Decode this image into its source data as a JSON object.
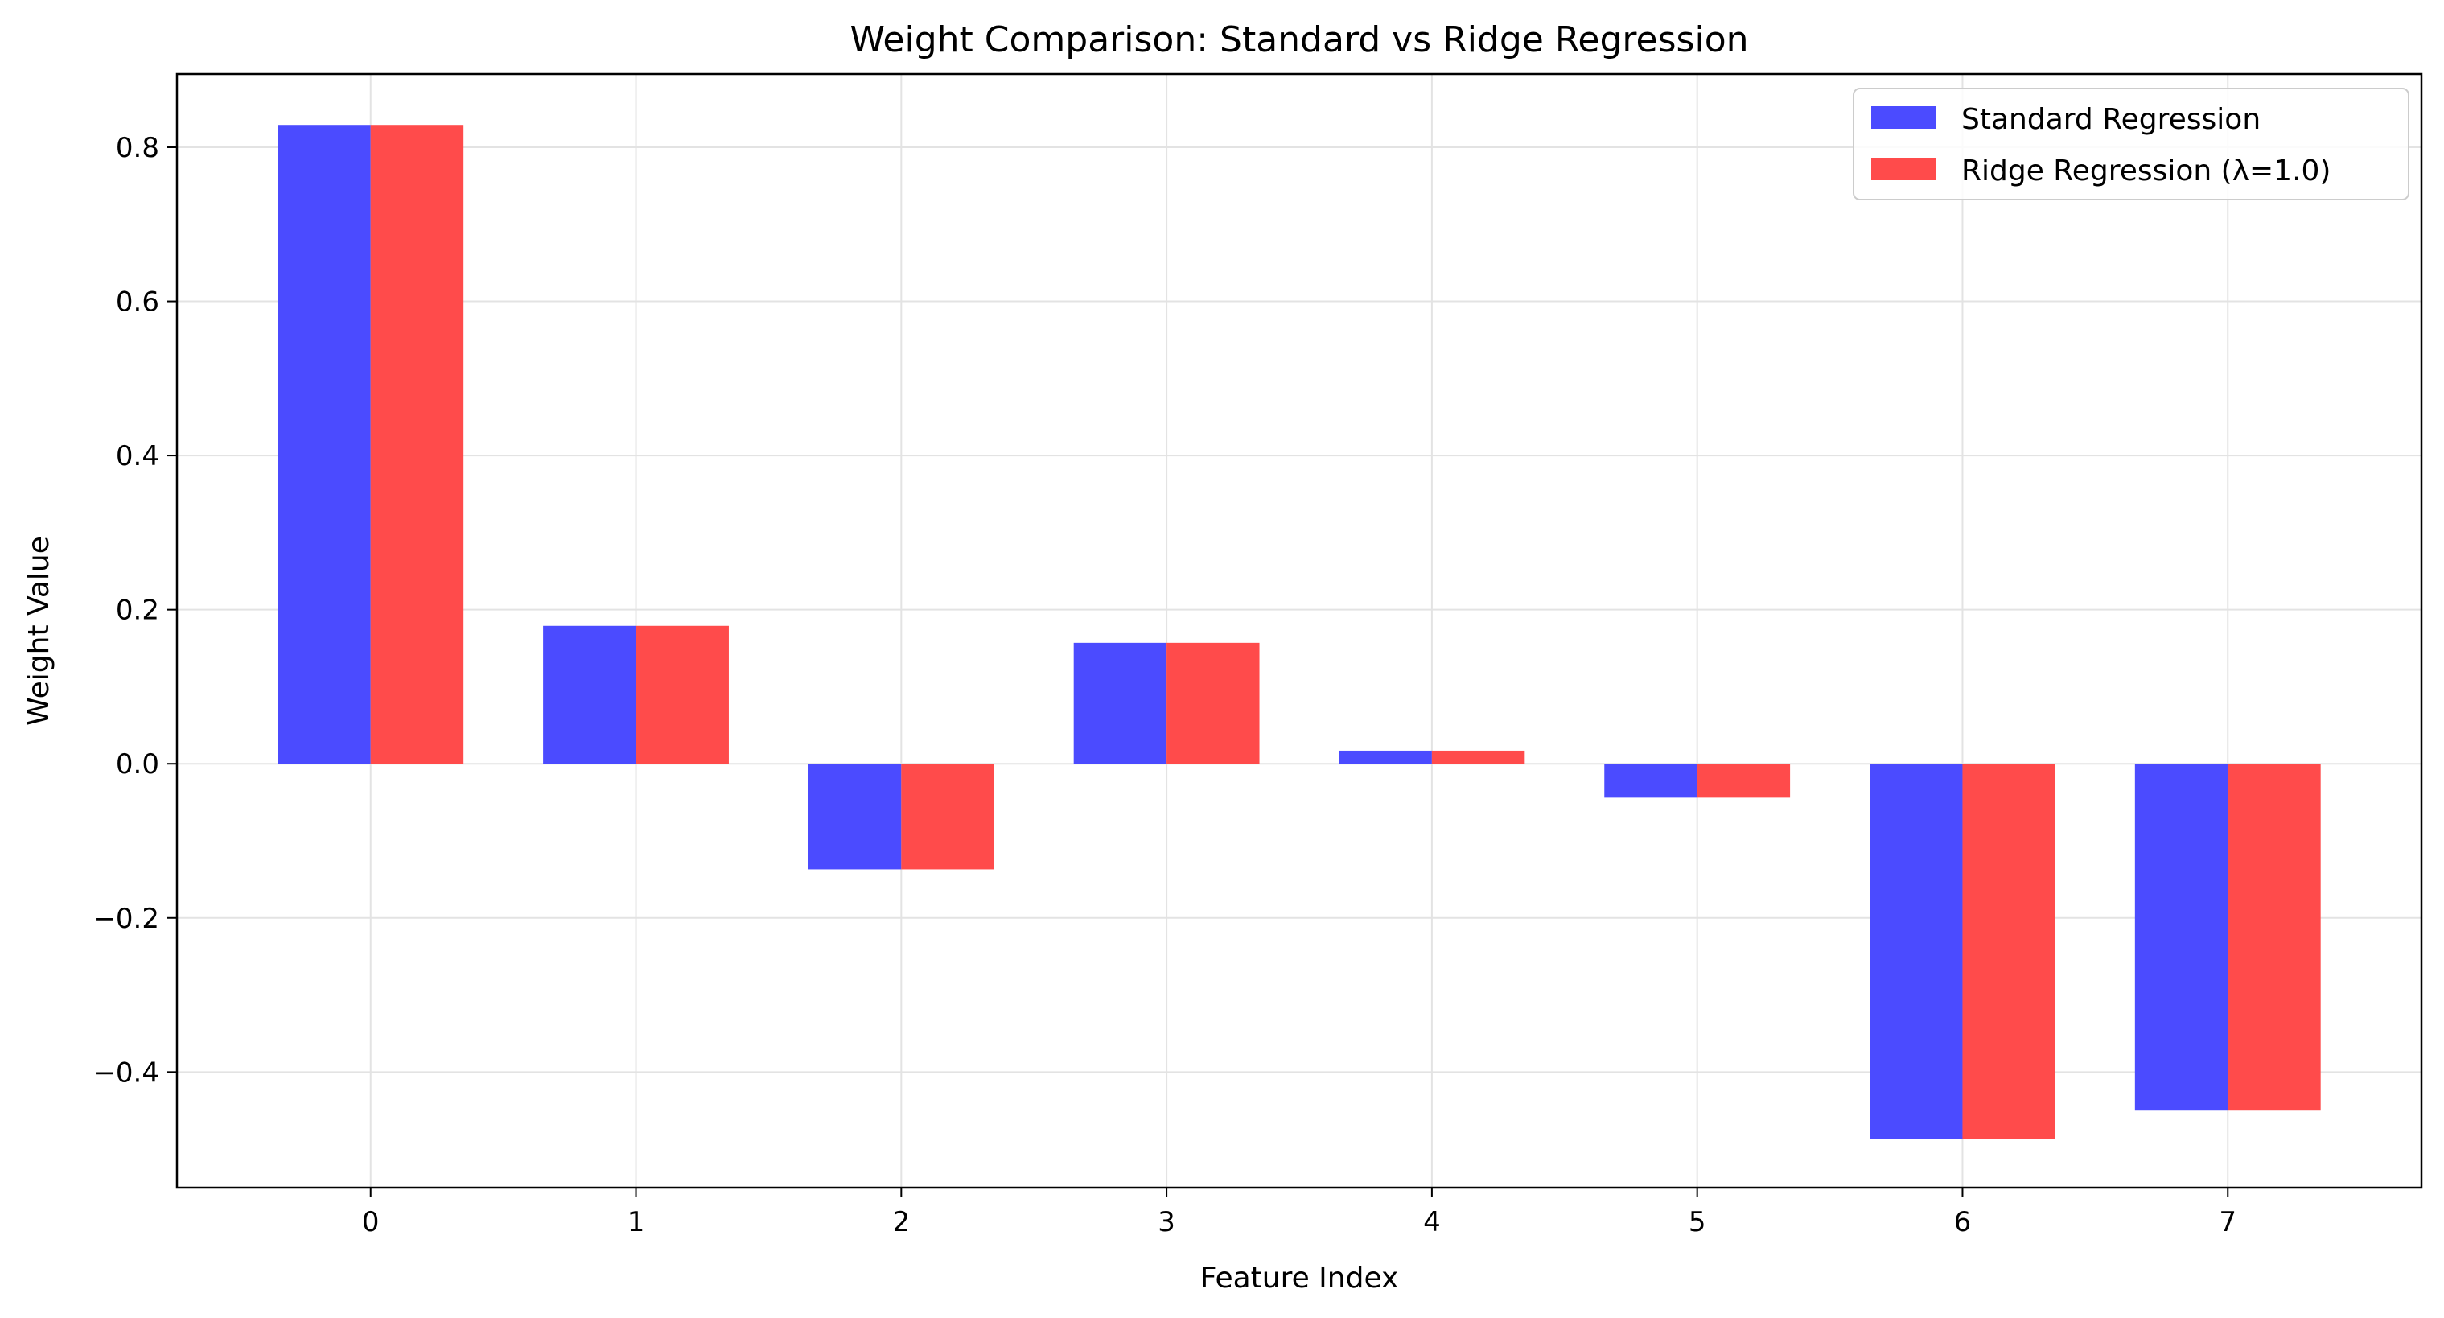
{
  "chart_data": {
    "type": "bar",
    "title": "Weight Comparison: Standard vs Ridge Regression",
    "xlabel": "Feature Index",
    "ylabel": "Weight Value",
    "categories": [
      "0",
      "1",
      "2",
      "3",
      "4",
      "5",
      "6",
      "7"
    ],
    "series": [
      {
        "name": "Standard Regression",
        "color": "#4b4bff",
        "values": [
          0.829,
          0.179,
          -0.137,
          0.157,
          0.017,
          -0.044,
          -0.487,
          -0.45
        ]
      },
      {
        "name": "Ridge Regression (λ=1.0)",
        "color": "#ff4b4b",
        "values": [
          0.829,
          0.179,
          -0.137,
          0.157,
          0.017,
          -0.044,
          -0.487,
          -0.45
        ]
      }
    ],
    "ylim": [
      -0.55,
      0.895
    ],
    "xlim": [
      -0.73,
      7.73
    ],
    "yticks": [
      -0.4,
      -0.2,
      0.0,
      0.2,
      0.4,
      0.6,
      0.8
    ],
    "ytick_labels": [
      "−0.4",
      "−0.2",
      "0.0",
      "0.2",
      "0.4",
      "0.6",
      "0.8"
    ],
    "grid": true,
    "legend_position": "top-right"
  }
}
